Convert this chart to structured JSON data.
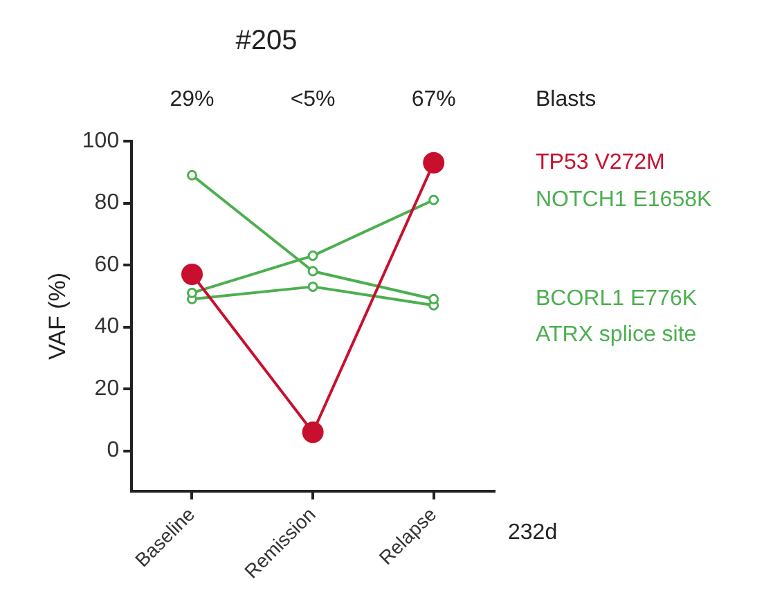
{
  "chart_data": {
    "type": "line",
    "title": "#205",
    "ylabel": "VAF (%)",
    "categories": [
      "Baseline",
      "Remission",
      "Relapse"
    ],
    "series": [
      {
        "name": "TP53 V272M",
        "color": "#c8102e",
        "values": [
          57,
          6,
          93
        ]
      },
      {
        "name": "NOTCH1 E1658K",
        "color": "#4caf50",
        "values": [
          51,
          63,
          81
        ]
      },
      {
        "name": "BCORL1 E776K",
        "color": "#4caf50",
        "values": [
          89,
          58,
          49
        ]
      },
      {
        "name": "ATRX splice site",
        "color": "#4caf50",
        "values": [
          49,
          53,
          47
        ]
      }
    ],
    "ylim": [
      -13,
      100
    ],
    "yticks": [
      0,
      20,
      40,
      60,
      80,
      100
    ],
    "grid": false,
    "legend": false,
    "marker": "circle",
    "line_style": "solid",
    "annotations": [
      "29%",
      "<5%",
      "67%",
      "Blasts",
      "232d"
    ]
  }
}
